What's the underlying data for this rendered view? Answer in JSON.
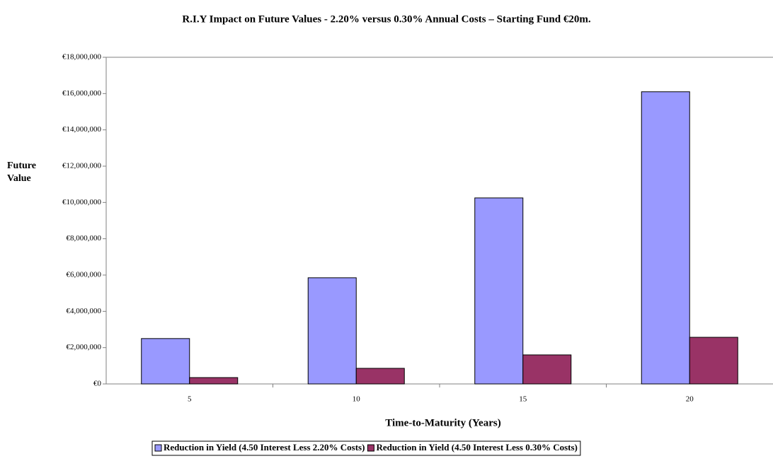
{
  "chart_data": {
    "type": "bar",
    "title": "R.I.Y Impact on Future Values - 2.20% versus 0.30% Annual Costs – Starting Fund €20m.",
    "x_label": "Time-to-Maturity (Years)",
    "y_label": "Future Value",
    "categories": [
      "5",
      "10",
      "15",
      "20"
    ],
    "series": [
      {
        "name": "Reduction in Yield (4.50 Interest Less 2.20% Costs)",
        "color": "#9999ff",
        "values": [
          2500000,
          5850000,
          10250000,
          16100000
        ]
      },
      {
        "name": "Reduction in Yield (4.50 Interest Less 0.30% Costs)",
        "color": "#993366",
        "values": [
          350000,
          860000,
          1600000,
          2570000
        ]
      }
    ],
    "ylim": [
      0,
      18000000
    ],
    "yticks": [
      {
        "value": 0,
        "label": "€0"
      },
      {
        "value": 2000000,
        "label": "€2,000,000"
      },
      {
        "value": 4000000,
        "label": "€4,000,000"
      },
      {
        "value": 6000000,
        "label": "€6,000,000"
      },
      {
        "value": 8000000,
        "label": "€8,000,000"
      },
      {
        "value": 10000000,
        "label": "€10,000,000"
      },
      {
        "value": 12000000,
        "label": "€12,000,000"
      },
      {
        "value": 14000000,
        "label": "€14,000,000"
      },
      {
        "value": 16000000,
        "label": "€16,000,000"
      },
      {
        "value": 18000000,
        "label": "€18,000,000"
      }
    ],
    "legend": "bottom"
  }
}
